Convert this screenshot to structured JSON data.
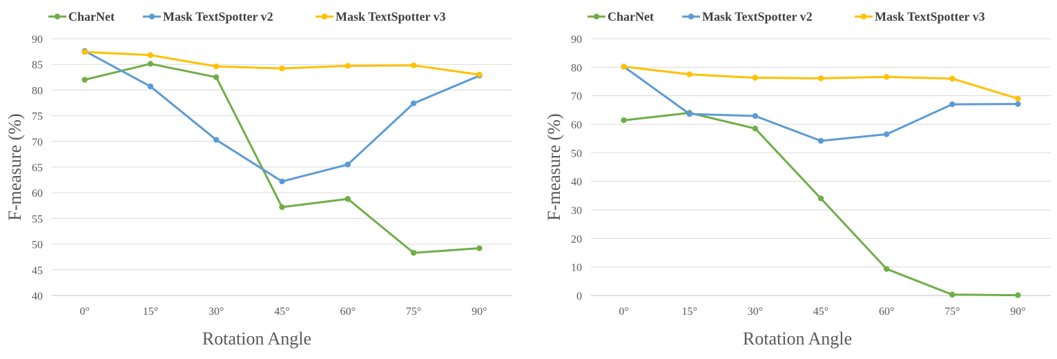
{
  "chart_data": [
    {
      "type": "line",
      "categories": [
        "0°",
        "15°",
        "30°",
        "45°",
        "60°",
        "75°",
        "90°"
      ],
      "series": [
        {
          "name": "CharNet",
          "color": "#70AD47",
          "values": [
            82.0,
            85.1,
            82.5,
            57.2,
            58.8,
            48.3,
            49.2
          ]
        },
        {
          "name": "Mask TextSpotter v2",
          "color": "#5B9BD5",
          "values": [
            87.6,
            80.7,
            70.3,
            62.2,
            65.5,
            77.4,
            82.8
          ]
        },
        {
          "name": "Mask TextSpotter v3",
          "color": "#FFC000",
          "values": [
            87.4,
            86.8,
            84.6,
            84.2,
            84.7,
            84.8,
            83.0
          ]
        }
      ],
      "xlabel": "Rotation Angle",
      "ylabel": "F-measure (%)",
      "ylim": [
        40,
        90
      ],
      "yticks": [
        40,
        45,
        50,
        55,
        60,
        65,
        70,
        75,
        80,
        85,
        90
      ],
      "grid": true,
      "legend_position": "top"
    },
    {
      "type": "line",
      "categories": [
        "0°",
        "15°",
        "30°",
        "45°",
        "60°",
        "75°",
        "90°"
      ],
      "series": [
        {
          "name": "CharNet",
          "color": "#70AD47",
          "values": [
            61.4,
            64.0,
            58.5,
            34.0,
            9.3,
            0.3,
            0.1
          ]
        },
        {
          "name": "Mask TextSpotter v2",
          "color": "#5B9BD5",
          "values": [
            80.2,
            63.6,
            62.9,
            54.2,
            56.5,
            67.0,
            67.1
          ]
        },
        {
          "name": "Mask TextSpotter v3",
          "color": "#FFC000",
          "values": [
            80.2,
            77.5,
            76.3,
            76.1,
            76.6,
            76.0,
            69.0
          ]
        }
      ],
      "xlabel": "Rotation Angle",
      "ylabel": "F-measure (%)",
      "ylim": [
        0,
        90
      ],
      "yticks": [
        0,
        10,
        20,
        30,
        40,
        50,
        60,
        70,
        80,
        90
      ],
      "grid": true,
      "legend_position": "top"
    }
  ]
}
